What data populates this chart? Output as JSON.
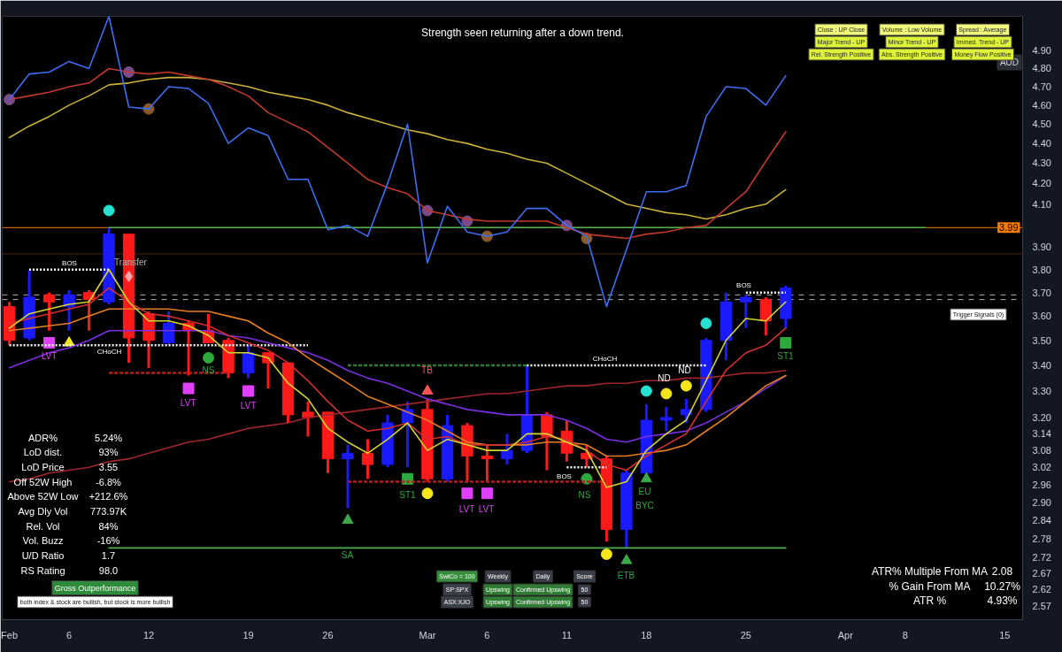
{
  "chart_data": {
    "type": "candlestick",
    "title": "Strength seen returning after a down trend.",
    "categories": [
      "Feb",
      null,
      null,
      "6",
      null,
      null,
      null,
      "12",
      null,
      null,
      null,
      null,
      "19",
      null,
      null,
      null,
      "26",
      null,
      null,
      null,
      null,
      "Mar",
      null,
      null,
      "6",
      null,
      null,
      null,
      "11",
      null,
      null,
      null,
      "18",
      null,
      null,
      null,
      null,
      "25",
      null,
      null,
      null,
      null,
      "Apr",
      null,
      null,
      "8",
      null,
      null,
      null,
      null,
      "15"
    ],
    "ohlc": [
      [
        3.64,
        3.66,
        3.48,
        3.5
      ],
      [
        3.51,
        3.8,
        3.5,
        3.68
      ],
      [
        3.69,
        3.7,
        3.54,
        3.66
      ],
      [
        3.64,
        3.71,
        3.54,
        3.69
      ],
      [
        3.7,
        3.71,
        3.54,
        3.67
      ],
      [
        3.66,
        3.99,
        3.65,
        3.96
      ],
      [
        3.96,
        3.96,
        3.41,
        3.51
      ],
      [
        3.61,
        3.62,
        3.39,
        3.5
      ],
      [
        3.49,
        3.62,
        3.48,
        3.57
      ],
      [
        3.57,
        3.58,
        3.36,
        3.54
      ],
      [
        3.54,
        3.61,
        3.49,
        3.49
      ],
      [
        3.5,
        3.51,
        3.35,
        3.37
      ],
      [
        3.37,
        3.48,
        3.35,
        3.45
      ],
      [
        3.45,
        3.45,
        3.31,
        3.41
      ],
      [
        3.41,
        3.41,
        3.18,
        3.21
      ],
      [
        3.22,
        3.26,
        3.13,
        3.2
      ],
      [
        3.22,
        3.22,
        3.0,
        3.05
      ],
      [
        3.05,
        3.1,
        2.88,
        3.07
      ],
      [
        3.07,
        3.12,
        2.98,
        3.03
      ],
      [
        3.03,
        3.21,
        3.02,
        3.18
      ],
      [
        3.18,
        3.26,
        3.02,
        3.23
      ],
      [
        3.23,
        3.27,
        2.97,
        2.98
      ],
      [
        2.98,
        3.21,
        2.97,
        3.17
      ],
      [
        3.17,
        3.18,
        2.97,
        3.06
      ],
      [
        3.06,
        3.1,
        2.97,
        3.05
      ],
      [
        3.05,
        3.14,
        3.03,
        3.08
      ],
      [
        3.08,
        3.4,
        3.07,
        3.21
      ],
      [
        3.21,
        3.22,
        3.01,
        3.13
      ],
      [
        3.15,
        3.19,
        3.04,
        3.07
      ],
      [
        3.07,
        3.1,
        3.02,
        3.05
      ],
      [
        3.05,
        3.06,
        2.77,
        2.81
      ],
      [
        2.81,
        3.01,
        2.75,
        3.0
      ],
      [
        3.0,
        3.25,
        2.99,
        3.19
      ],
      [
        3.19,
        3.24,
        3.15,
        3.2
      ],
      [
        3.21,
        3.27,
        3.18,
        3.23
      ],
      [
        3.23,
        3.51,
        3.22,
        3.5
      ],
      [
        3.5,
        3.7,
        3.42,
        3.66
      ],
      [
        3.66,
        3.69,
        3.55,
        3.68
      ],
      [
        3.67,
        3.68,
        3.52,
        3.58
      ],
      [
        3.59,
        3.73,
        3.55,
        3.72
      ],
      null,
      null,
      null,
      null,
      null,
      null,
      null,
      null,
      null,
      null,
      null
    ],
    "colors": [
      "#ff1a1a",
      "#1a1aff",
      "#ff1a1a",
      "#1a1aff",
      "#ff1a1a",
      "#1a1aff",
      "#ff1a1a",
      "#ff1a1a",
      "#1a1aff",
      "#ff1a1a",
      "#ff1a1a",
      "#ff1a1a",
      "#1a1aff",
      "#ff1a1a",
      "#ff1a1a",
      "#ff1a1a",
      "#ff1a1a",
      "#1a1aff",
      "#ff1a1a",
      "#1a1aff",
      "#1a1aff",
      "#ff1a1a",
      "#1a1aff",
      "#ff1a1a",
      "#ff1a1a",
      "#1a1aff",
      "#1a1aff",
      "#ff1a1a",
      "#ff1a1a",
      "#ff1a1a",
      "#ff1a1a",
      "#1a1aff",
      "#1a1aff",
      "#1a1aff",
      "#1a1aff",
      "#1a1aff",
      "#1a1aff",
      "#1a1aff",
      "#ff1a1a",
      "#1a1aff",
      null,
      null,
      null,
      null,
      null,
      null,
      null,
      null,
      null,
      null,
      null
    ],
    "log": true,
    "ylim": [
      2.53,
      5.1
    ],
    "yticks": [
      2.57,
      2.62,
      2.67,
      2.72,
      2.78,
      2.84,
      {
        "value": 2.9,
        "label": "2.90"
      },
      2.96,
      3.02,
      3.08,
      3.14,
      {
        "value": 3.2,
        "label": "3.20"
      },
      {
        "value": 3.3,
        "label": "3.30"
      },
      {
        "value": 3.4,
        "label": "3.40"
      },
      {
        "value": 3.5,
        "label": "3.50"
      },
      {
        "value": 3.6,
        "label": "3.60"
      },
      {
        "value": 3.7,
        "label": "3.70"
      },
      {
        "value": 3.8,
        "label": "3.80"
      },
      {
        "value": 3.9,
        "label": "3.90"
      },
      {
        "value": 4.1,
        "label": "4.10"
      },
      {
        "value": 4.2,
        "label": "4.20"
      },
      {
        "value": 4.3,
        "label": "4.30"
      },
      {
        "value": 4.4,
        "label": "4.40"
      },
      {
        "value": 4.5,
        "label": "4.50"
      },
      {
        "value": 4.6,
        "label": "4.60"
      },
      {
        "value": 4.7,
        "label": "4.70"
      },
      {
        "value": 4.8,
        "label": "4.80"
      },
      {
        "value": 4.9,
        "label": "4.90"
      }
    ],
    "grid": false,
    "ref_lines": [
      {
        "axis": "y",
        "value": 3.99,
        "label": "3.99",
        "color": "#f57c00"
      },
      {
        "axis": "y",
        "value": 3.87,
        "color": "#4a2318"
      },
      {
        "axis": "y",
        "value": 3.69,
        "color": "#b0b0b0",
        "line_style": "dashed"
      },
      {
        "axis": "y",
        "value": 3.67,
        "color": "#b0b0b0",
        "line_style": "dashed"
      }
    ],
    "series": [
      {
        "type": "line",
        "color": "#4caf50",
        "values": [
          null,
          null,
          null,
          null,
          null,
          3.99,
          3.99,
          3.99,
          3.99,
          3.99,
          3.99,
          3.99,
          3.99,
          3.99,
          3.99,
          3.99,
          3.99,
          3.99,
          3.99,
          3.99,
          3.99,
          3.99,
          3.99,
          3.99,
          3.99,
          3.99,
          3.99,
          3.99,
          3.99,
          3.99,
          3.99,
          3.99,
          3.99,
          3.99,
          3.99,
          3.99,
          3.99,
          3.99,
          3.99,
          3.99,
          3.99,
          3.99,
          3.99,
          3.99,
          3.99,
          3.99,
          3.99,
          null,
          null,
          null,
          null
        ]
      },
      {
        "type": "line",
        "color": "#4caf50",
        "values": [
          null,
          null,
          null,
          null,
          null,
          2.75,
          2.75,
          2.75,
          2.75,
          2.75,
          2.75,
          2.75,
          2.75,
          2.75,
          2.75,
          2.75,
          2.75,
          2.75,
          2.75,
          2.75,
          2.75,
          2.75,
          2.75,
          2.75,
          2.75,
          2.75,
          2.75,
          2.75,
          2.75,
          2.75,
          2.75,
          2.75,
          2.75,
          2.75,
          2.75,
          2.75,
          2.75,
          2.75,
          2.75,
          2.75,
          null,
          null,
          null,
          null,
          null,
          null,
          null,
          null,
          null,
          null,
          null
        ]
      },
      {
        "type": "line",
        "color": "#ffffff",
        "line_style": "dotted",
        "values": [
          null,
          3.8,
          3.8,
          3.8,
          3.8,
          3.8,
          null,
          null,
          null,
          null,
          null,
          null,
          null,
          null,
          null,
          null,
          null,
          null,
          null,
          null,
          null,
          null,
          null,
          null,
          null,
          null,
          null,
          null,
          null,
          null,
          null,
          null,
          null,
          null,
          null,
          null,
          null,
          null,
          null,
          null,
          null,
          null,
          null,
          null,
          null,
          null,
          null,
          null,
          null,
          null,
          null
        ]
      },
      {
        "type": "line",
        "color": "#ffffff",
        "line_style": "dotted",
        "values": [
          3.48,
          3.48,
          3.48,
          3.48,
          3.48,
          3.48,
          3.48,
          3.48,
          3.48,
          3.48,
          3.48,
          3.48,
          3.48,
          3.48,
          3.48,
          3.48,
          null,
          null,
          null,
          null,
          null,
          null,
          null,
          null,
          null,
          null,
          null,
          null,
          null,
          null,
          null,
          null,
          null,
          null,
          null,
          null,
          null,
          null,
          null,
          null,
          null,
          null,
          null,
          null,
          null,
          null,
          null,
          null,
          null,
          null,
          null
        ]
      },
      {
        "type": "line",
        "color": "#2e7d32",
        "line_style": "dashed",
        "values": [
          null,
          null,
          null,
          null,
          null,
          null,
          null,
          null,
          null,
          null,
          null,
          null,
          null,
          null,
          null,
          null,
          null,
          3.4,
          3.4,
          3.4,
          3.4,
          3.4,
          3.4,
          3.4,
          3.4,
          3.4,
          3.4,
          null,
          null,
          null,
          null,
          null,
          null,
          null,
          null,
          null,
          null,
          null,
          null,
          null,
          null,
          null,
          null,
          null,
          null,
          null,
          null,
          null,
          null,
          null,
          null
        ]
      },
      {
        "type": "line",
        "color": "#ffffff",
        "line_style": "dotted",
        "values": [
          null,
          null,
          null,
          null,
          null,
          null,
          null,
          null,
          null,
          null,
          null,
          null,
          null,
          null,
          null,
          null,
          null,
          null,
          null,
          null,
          null,
          null,
          null,
          null,
          null,
          null,
          3.4,
          3.4,
          3.4,
          3.4,
          3.4,
          3.4,
          3.4,
          3.4,
          3.4,
          3.4,
          null,
          null,
          null,
          null,
          null,
          null,
          null,
          null,
          null,
          null,
          null,
          null,
          null,
          null,
          null
        ]
      },
      {
        "type": "line",
        "color": "#b71c1c",
        "line_style": "dashed",
        "values": [
          null,
          null,
          null,
          null,
          null,
          3.37,
          3.37,
          3.37,
          3.37,
          3.37,
          3.37,
          3.37,
          null,
          null,
          null,
          null,
          null,
          null,
          null,
          null,
          null,
          null,
          null,
          null,
          null,
          null,
          null,
          null,
          null,
          null,
          null,
          null,
          null,
          null,
          null,
          null,
          null,
          null,
          null,
          null,
          null,
          null,
          null,
          null,
          null,
          null,
          null,
          null,
          null,
          null,
          null
        ]
      },
      {
        "type": "line",
        "color": "#b71c1c",
        "line_style": "dashed",
        "values": [
          null,
          null,
          null,
          null,
          null,
          null,
          null,
          null,
          null,
          null,
          null,
          null,
          null,
          null,
          null,
          null,
          null,
          2.97,
          2.97,
          2.97,
          2.97,
          2.97,
          2.97,
          2.97,
          2.97,
          2.97,
          2.97,
          2.97,
          2.97,
          2.97,
          2.97,
          null,
          null,
          null,
          null,
          null,
          null,
          null,
          null,
          null,
          null,
          null,
          null,
          null,
          null,
          null,
          null,
          null,
          null,
          null,
          null
        ]
      },
      {
        "type": "line",
        "color": "#ffffff",
        "line_style": "dotted",
        "values": [
          null,
          null,
          null,
          null,
          null,
          null,
          null,
          null,
          null,
          null,
          null,
          null,
          null,
          null,
          null,
          null,
          null,
          null,
          null,
          null,
          null,
          null,
          null,
          null,
          null,
          null,
          null,
          null,
          3.02,
          3.02,
          3.02,
          null,
          null,
          null,
          null,
          null,
          null,
          null,
          null,
          null,
          null,
          null,
          null,
          null,
          null,
          null,
          null,
          null,
          null,
          null,
          null
        ]
      },
      {
        "type": "line",
        "color": "#ffffff",
        "line_style": "dotted",
        "values": [
          null,
          null,
          null,
          null,
          null,
          null,
          null,
          null,
          null,
          null,
          null,
          null,
          null,
          null,
          null,
          null,
          null,
          null,
          null,
          null,
          null,
          null,
          null,
          null,
          null,
          null,
          null,
          null,
          null,
          null,
          null,
          null,
          null,
          null,
          null,
          null,
          null,
          3.7,
          3.7,
          3.7,
          null,
          null,
          null,
          null,
          null,
          null,
          null,
          null,
          null,
          null,
          null
        ]
      },
      {
        "type": "line",
        "color": "#a0262b",
        "values": [
          2.97,
          2.98,
          3.0,
          3.01,
          3.02,
          3.04,
          3.05,
          3.07,
          3.09,
          3.11,
          3.12,
          3.14,
          3.16,
          3.17,
          3.18,
          3.2,
          3.21,
          3.22,
          3.23,
          3.24,
          3.25,
          3.26,
          3.27,
          3.28,
          3.29,
          3.29,
          3.3,
          3.31,
          3.32,
          3.32,
          3.33,
          3.33,
          3.34,
          3.34,
          3.35,
          3.35,
          3.36,
          3.37,
          3.37,
          3.38,
          null,
          null,
          null,
          null,
          null,
          null,
          null,
          null,
          null,
          null,
          null
        ]
      },
      {
        "type": "line",
        "color": "#7b2fe0",
        "values": [
          3.39,
          3.42,
          3.45,
          3.47,
          3.5,
          3.54,
          3.54,
          3.54,
          3.54,
          3.54,
          3.54,
          3.52,
          3.51,
          3.49,
          3.47,
          3.45,
          3.42,
          3.38,
          3.35,
          3.33,
          3.3,
          3.27,
          3.25,
          3.23,
          3.22,
          3.21,
          3.21,
          3.21,
          3.19,
          3.16,
          3.12,
          3.11,
          3.13,
          3.14,
          3.15,
          3.18,
          3.22,
          3.26,
          3.31,
          3.36,
          null,
          null,
          null,
          null,
          null,
          null,
          null,
          null,
          null,
          null,
          null
        ]
      },
      {
        "type": "line",
        "color": "#e67e22",
        "values": [
          3.54,
          3.55,
          3.56,
          3.57,
          3.6,
          3.63,
          3.63,
          3.63,
          3.63,
          3.62,
          3.62,
          3.6,
          3.58,
          3.53,
          3.49,
          3.43,
          3.38,
          3.33,
          3.28,
          3.25,
          3.22,
          3.19,
          3.15,
          3.11,
          3.1,
          3.1,
          3.1,
          3.11,
          3.11,
          3.1,
          3.06,
          3.06,
          3.07,
          3.08,
          3.1,
          3.15,
          3.2,
          3.26,
          3.32,
          3.36,
          null,
          null,
          null,
          null,
          null,
          null,
          null,
          null,
          null,
          null,
          null
        ]
      },
      {
        "type": "line",
        "color": "#d32f2f",
        "values": [
          3.57,
          3.59,
          3.61,
          3.63,
          3.65,
          3.72,
          3.66,
          3.61,
          3.6,
          3.58,
          3.56,
          3.52,
          3.49,
          3.46,
          3.41,
          3.34,
          3.26,
          3.19,
          3.15,
          3.16,
          3.18,
          3.12,
          3.13,
          3.1,
          3.1,
          3.1,
          3.11,
          3.13,
          3.12,
          3.08,
          3.03,
          3.01,
          3.06,
          3.1,
          3.14,
          3.26,
          3.38,
          3.45,
          3.48,
          3.55,
          null,
          null,
          null,
          null,
          null,
          null,
          null,
          null,
          null,
          null,
          null
        ]
      },
      {
        "type": "line",
        "color": "#d4d433",
        "values": [
          3.55,
          3.61,
          3.63,
          3.65,
          3.66,
          3.8,
          3.66,
          3.58,
          3.58,
          3.56,
          3.52,
          3.45,
          3.45,
          3.43,
          3.33,
          3.27,
          3.16,
          3.11,
          3.07,
          3.12,
          3.18,
          3.08,
          3.12,
          3.1,
          3.08,
          3.08,
          3.14,
          3.14,
          3.11,
          3.08,
          2.95,
          2.97,
          3.08,
          3.14,
          3.19,
          3.34,
          3.5,
          3.59,
          3.58,
          3.66,
          null,
          null,
          null,
          null,
          null,
          null,
          null,
          null,
          null,
          null,
          null
        ]
      },
      {
        "type": "line",
        "color": "#c9b037",
        "values": [
          4.43,
          4.49,
          4.54,
          4.6,
          4.65,
          4.71,
          4.72,
          4.74,
          4.75,
          4.75,
          4.74,
          4.72,
          4.7,
          4.67,
          4.65,
          4.63,
          4.6,
          4.56,
          4.53,
          4.5,
          4.47,
          4.45,
          4.42,
          4.4,
          4.37,
          4.35,
          4.32,
          4.3,
          4.25,
          4.2,
          4.15,
          4.1,
          4.08,
          4.06,
          4.05,
          4.03,
          4.05,
          4.08,
          4.1,
          4.17,
          null,
          null,
          null,
          null,
          null,
          null,
          null,
          null,
          null,
          null,
          null
        ]
      },
      {
        "type": "line",
        "color": "#c0392b",
        "values": [
          4.63,
          4.65,
          4.67,
          4.7,
          4.72,
          4.8,
          4.78,
          4.77,
          4.78,
          4.76,
          4.74,
          4.7,
          4.65,
          4.56,
          4.51,
          4.46,
          4.38,
          4.3,
          4.22,
          4.18,
          4.15,
          4.07,
          4.05,
          4.03,
          4.02,
          4.02,
          4.02,
          4.02,
          3.99,
          3.96,
          3.95,
          3.94,
          3.96,
          3.97,
          3.99,
          4.0,
          4.08,
          4.16,
          4.31,
          4.46,
          null,
          null,
          null,
          null,
          null,
          null,
          null,
          null,
          null,
          null,
          null
        ]
      },
      {
        "type": "line",
        "color": "#3d6df2",
        "values": [
          4.63,
          4.77,
          4.78,
          4.84,
          4.8,
          5.1,
          4.59,
          4.58,
          4.7,
          4.69,
          4.61,
          4.4,
          4.48,
          4.44,
          4.22,
          4.22,
          3.98,
          4.0,
          3.95,
          4.2,
          4.5,
          3.83,
          4.09,
          3.97,
          3.95,
          3.97,
          4.08,
          4.08,
          4.0,
          3.95,
          3.64,
          3.89,
          4.16,
          4.16,
          4.19,
          4.54,
          4.7,
          4.69,
          4.6,
          4.76,
          null,
          null,
          null,
          null,
          null,
          null,
          null,
          null,
          null,
          null,
          null
        ]
      },
      {
        "type": "scatter",
        "marker": "circle",
        "color": "#7a4a8a",
        "values": [
          4.63,
          null,
          null,
          null,
          null,
          null,
          4.78,
          null,
          null,
          null,
          null,
          null,
          null,
          null,
          null,
          null,
          null,
          null,
          null,
          null,
          null,
          4.07,
          null,
          4.02,
          null,
          null,
          null,
          null,
          4.0,
          null,
          null,
          null,
          null,
          null,
          null,
          null,
          null,
          null,
          null,
          null,
          null,
          null,
          null,
          null,
          null,
          null,
          null,
          null,
          null,
          null,
          null
        ]
      },
      {
        "type": "scatter",
        "marker": "circle",
        "color": "#8a5a2a",
        "values": [
          null,
          null,
          null,
          null,
          null,
          null,
          null,
          4.58,
          null,
          null,
          null,
          null,
          null,
          null,
          null,
          null,
          null,
          null,
          null,
          null,
          null,
          null,
          null,
          null,
          3.95,
          null,
          null,
          null,
          null,
          3.94,
          null,
          null,
          null,
          null,
          null,
          null,
          null,
          null,
          null,
          null,
          null,
          null,
          null,
          null,
          null,
          null,
          null,
          null,
          null,
          null,
          null
        ]
      },
      {
        "type": "scatter",
        "marker": "circle",
        "color": "#26e0d0",
        "values": [
          null,
          null,
          null,
          null,
          null,
          4.07,
          null,
          null,
          null,
          null,
          null,
          null,
          null,
          null,
          null,
          null,
          null,
          null,
          null,
          null,
          null,
          null,
          null,
          null,
          null,
          null,
          null,
          null,
          null,
          null,
          null,
          null,
          3.3,
          null,
          null,
          3.57,
          null,
          null,
          null,
          null,
          null,
          null,
          null,
          null,
          null,
          null,
          null,
          null,
          null,
          null,
          null
        ]
      },
      {
        "type": "scatter",
        "marker": "circle",
        "color": "#f5e61c",
        "values": [
          null,
          null,
          null,
          null,
          null,
          null,
          null,
          null,
          null,
          null,
          null,
          null,
          null,
          null,
          null,
          null,
          null,
          null,
          null,
          null,
          null,
          2.93,
          null,
          null,
          null,
          null,
          null,
          null,
          null,
          null,
          2.73,
          null,
          null,
          3.29,
          3.32,
          null,
          null,
          null,
          null,
          null,
          null,
          null,
          null,
          null,
          null,
          null,
          null,
          null,
          null,
          null,
          null
        ]
      },
      {
        "type": "scatter",
        "marker": "circle",
        "color": "#2eaa3c",
        "values": [
          null,
          null,
          null,
          null,
          null,
          null,
          null,
          null,
          null,
          null,
          3.43,
          null,
          null,
          null,
          null,
          null,
          null,
          null,
          null,
          null,
          null,
          null,
          null,
          null,
          null,
          null,
          null,
          null,
          null,
          2.98,
          null,
          null,
          null,
          null,
          null,
          null,
          null,
          null,
          null,
          null,
          null,
          null,
          null,
          null,
          null,
          null,
          null,
          null,
          null,
          null,
          null
        ]
      },
      {
        "type": "scatter",
        "marker": "square",
        "color": "#e040fb",
        "values": [
          null,
          null,
          3.49,
          null,
          null,
          null,
          null,
          null,
          null,
          3.31,
          null,
          null,
          3.3,
          null,
          null,
          null,
          null,
          null,
          null,
          null,
          null,
          null,
          null,
          2.93,
          2.93,
          null,
          null,
          null,
          null,
          null,
          null,
          null,
          null,
          null,
          null,
          null,
          null,
          null,
          null,
          null,
          null,
          null,
          null,
          null,
          null,
          null,
          null,
          null,
          null,
          null,
          null
        ]
      },
      {
        "type": "scatter",
        "marker": "square",
        "color": "#2eaa3c",
        "values": [
          null,
          null,
          null,
          null,
          null,
          null,
          null,
          null,
          null,
          null,
          null,
          null,
          null,
          null,
          null,
          null,
          null,
          null,
          null,
          null,
          2.98,
          null,
          null,
          null,
          null,
          null,
          null,
          null,
          null,
          null,
          null,
          null,
          null,
          null,
          null,
          null,
          null,
          null,
          null,
          3.49,
          null,
          null,
          null,
          null,
          null,
          null,
          null,
          null,
          null,
          null,
          null
        ]
      },
      {
        "type": "scatter",
        "marker": "triangle",
        "color": "#3da84a",
        "values": [
          null,
          null,
          null,
          null,
          null,
          null,
          null,
          null,
          null,
          null,
          null,
          null,
          null,
          null,
          null,
          null,
          null,
          2.84,
          null,
          null,
          null,
          null,
          null,
          null,
          null,
          null,
          null,
          null,
          null,
          null,
          null,
          2.71,
          2.98,
          null,
          null,
          null,
          null,
          null,
          null,
          null,
          null,
          null,
          null,
          null,
          null,
          null,
          null,
          null,
          null,
          null,
          null
        ]
      },
      {
        "type": "scatter",
        "marker": "triangle",
        "color": "#f5e61c",
        "values": [
          null,
          null,
          null,
          3.49,
          null,
          null,
          null,
          null,
          null,
          null,
          null,
          null,
          null,
          null,
          null,
          null,
          null,
          null,
          null,
          null,
          null,
          null,
          null,
          null,
          null,
          null,
          null,
          null,
          null,
          null,
          null,
          null,
          null,
          null,
          null,
          null,
          null,
          null,
          null,
          null,
          null,
          null,
          null,
          null,
          null,
          null,
          null,
          null,
          null,
          null,
          null
        ]
      },
      {
        "type": "scatter",
        "marker": "triangle",
        "color": "#ff5252",
        "values": [
          null,
          null,
          null,
          null,
          null,
          null,
          null,
          null,
          null,
          null,
          null,
          null,
          null,
          null,
          null,
          null,
          null,
          null,
          null,
          null,
          null,
          3.3,
          null,
          null,
          null,
          null,
          null,
          null,
          null,
          null,
          null,
          null,
          null,
          null,
          null,
          null,
          null,
          null,
          null,
          null,
          null,
          null,
          null,
          null,
          null,
          null,
          null,
          null,
          null,
          null,
          null
        ]
      },
      {
        "type": "scatter",
        "marker": "diamond",
        "color": "#f8a5a5",
        "values": [
          null,
          null,
          null,
          null,
          null,
          null,
          3.77,
          null,
          null,
          null,
          null,
          null,
          null,
          null,
          null,
          null,
          null,
          null,
          null,
          null,
          null,
          null,
          null,
          null,
          null,
          null,
          null,
          null,
          null,
          null,
          null,
          null,
          null,
          null,
          null,
          null,
          null,
          null,
          null,
          null,
          null,
          null,
          null,
          null,
          null,
          null,
          null,
          null,
          null,
          null,
          null
        ]
      }
    ],
    "annotations": [
      "AUD",
      "Close : UP Close",
      "Volume : Low Volume",
      "Spread : Average",
      "Major Trend - UP",
      "Minor Trend - UP",
      "Immed. Trend - UP",
      "Rel. Strength Positive",
      "Abs. Strength Positive",
      "Money Flow Positive",
      "ADR%",
      "5.24%",
      "LoD dist.",
      "93%",
      "LoD Price",
      "3.55",
      "Off 52W High",
      "-6.8%",
      "Above 52W Low",
      "+212.6%",
      "Avg Dly Vol",
      "773.97K",
      "Rel. Vol",
      "84%",
      "Vol. Buzz",
      "-16%",
      "U/D Ratio",
      "1.7",
      "RS Rating",
      "98.0",
      "Gross Outperformance",
      "both index & stock are bullish, but stock is more bullish",
      "SwtCo = 100",
      "Weekly",
      "Daily",
      "Score",
      "SP:SPX",
      "Upswing",
      "Confirmed Upswing",
      "50",
      "ASX:XJO",
      "Upswing",
      "Confirmed Upswing",
      "50",
      "ATR% Multiple From MA",
      "2.08",
      "% Gain From MA",
      "10.27%",
      "ATR %",
      "4.93%",
      "Trigger Signals (0)",
      "LVT",
      "LVT",
      "LVT",
      "LVT",
      "LVT",
      "NS",
      "NS",
      "ST1",
      "ST1",
      "SA",
      "TB",
      "EU",
      "BYC",
      "ND",
      "ND",
      "Transfer",
      "BOS",
      "BOS",
      "BOS",
      "CHoCH",
      "CHoCH",
      "ETB"
    ]
  }
}
